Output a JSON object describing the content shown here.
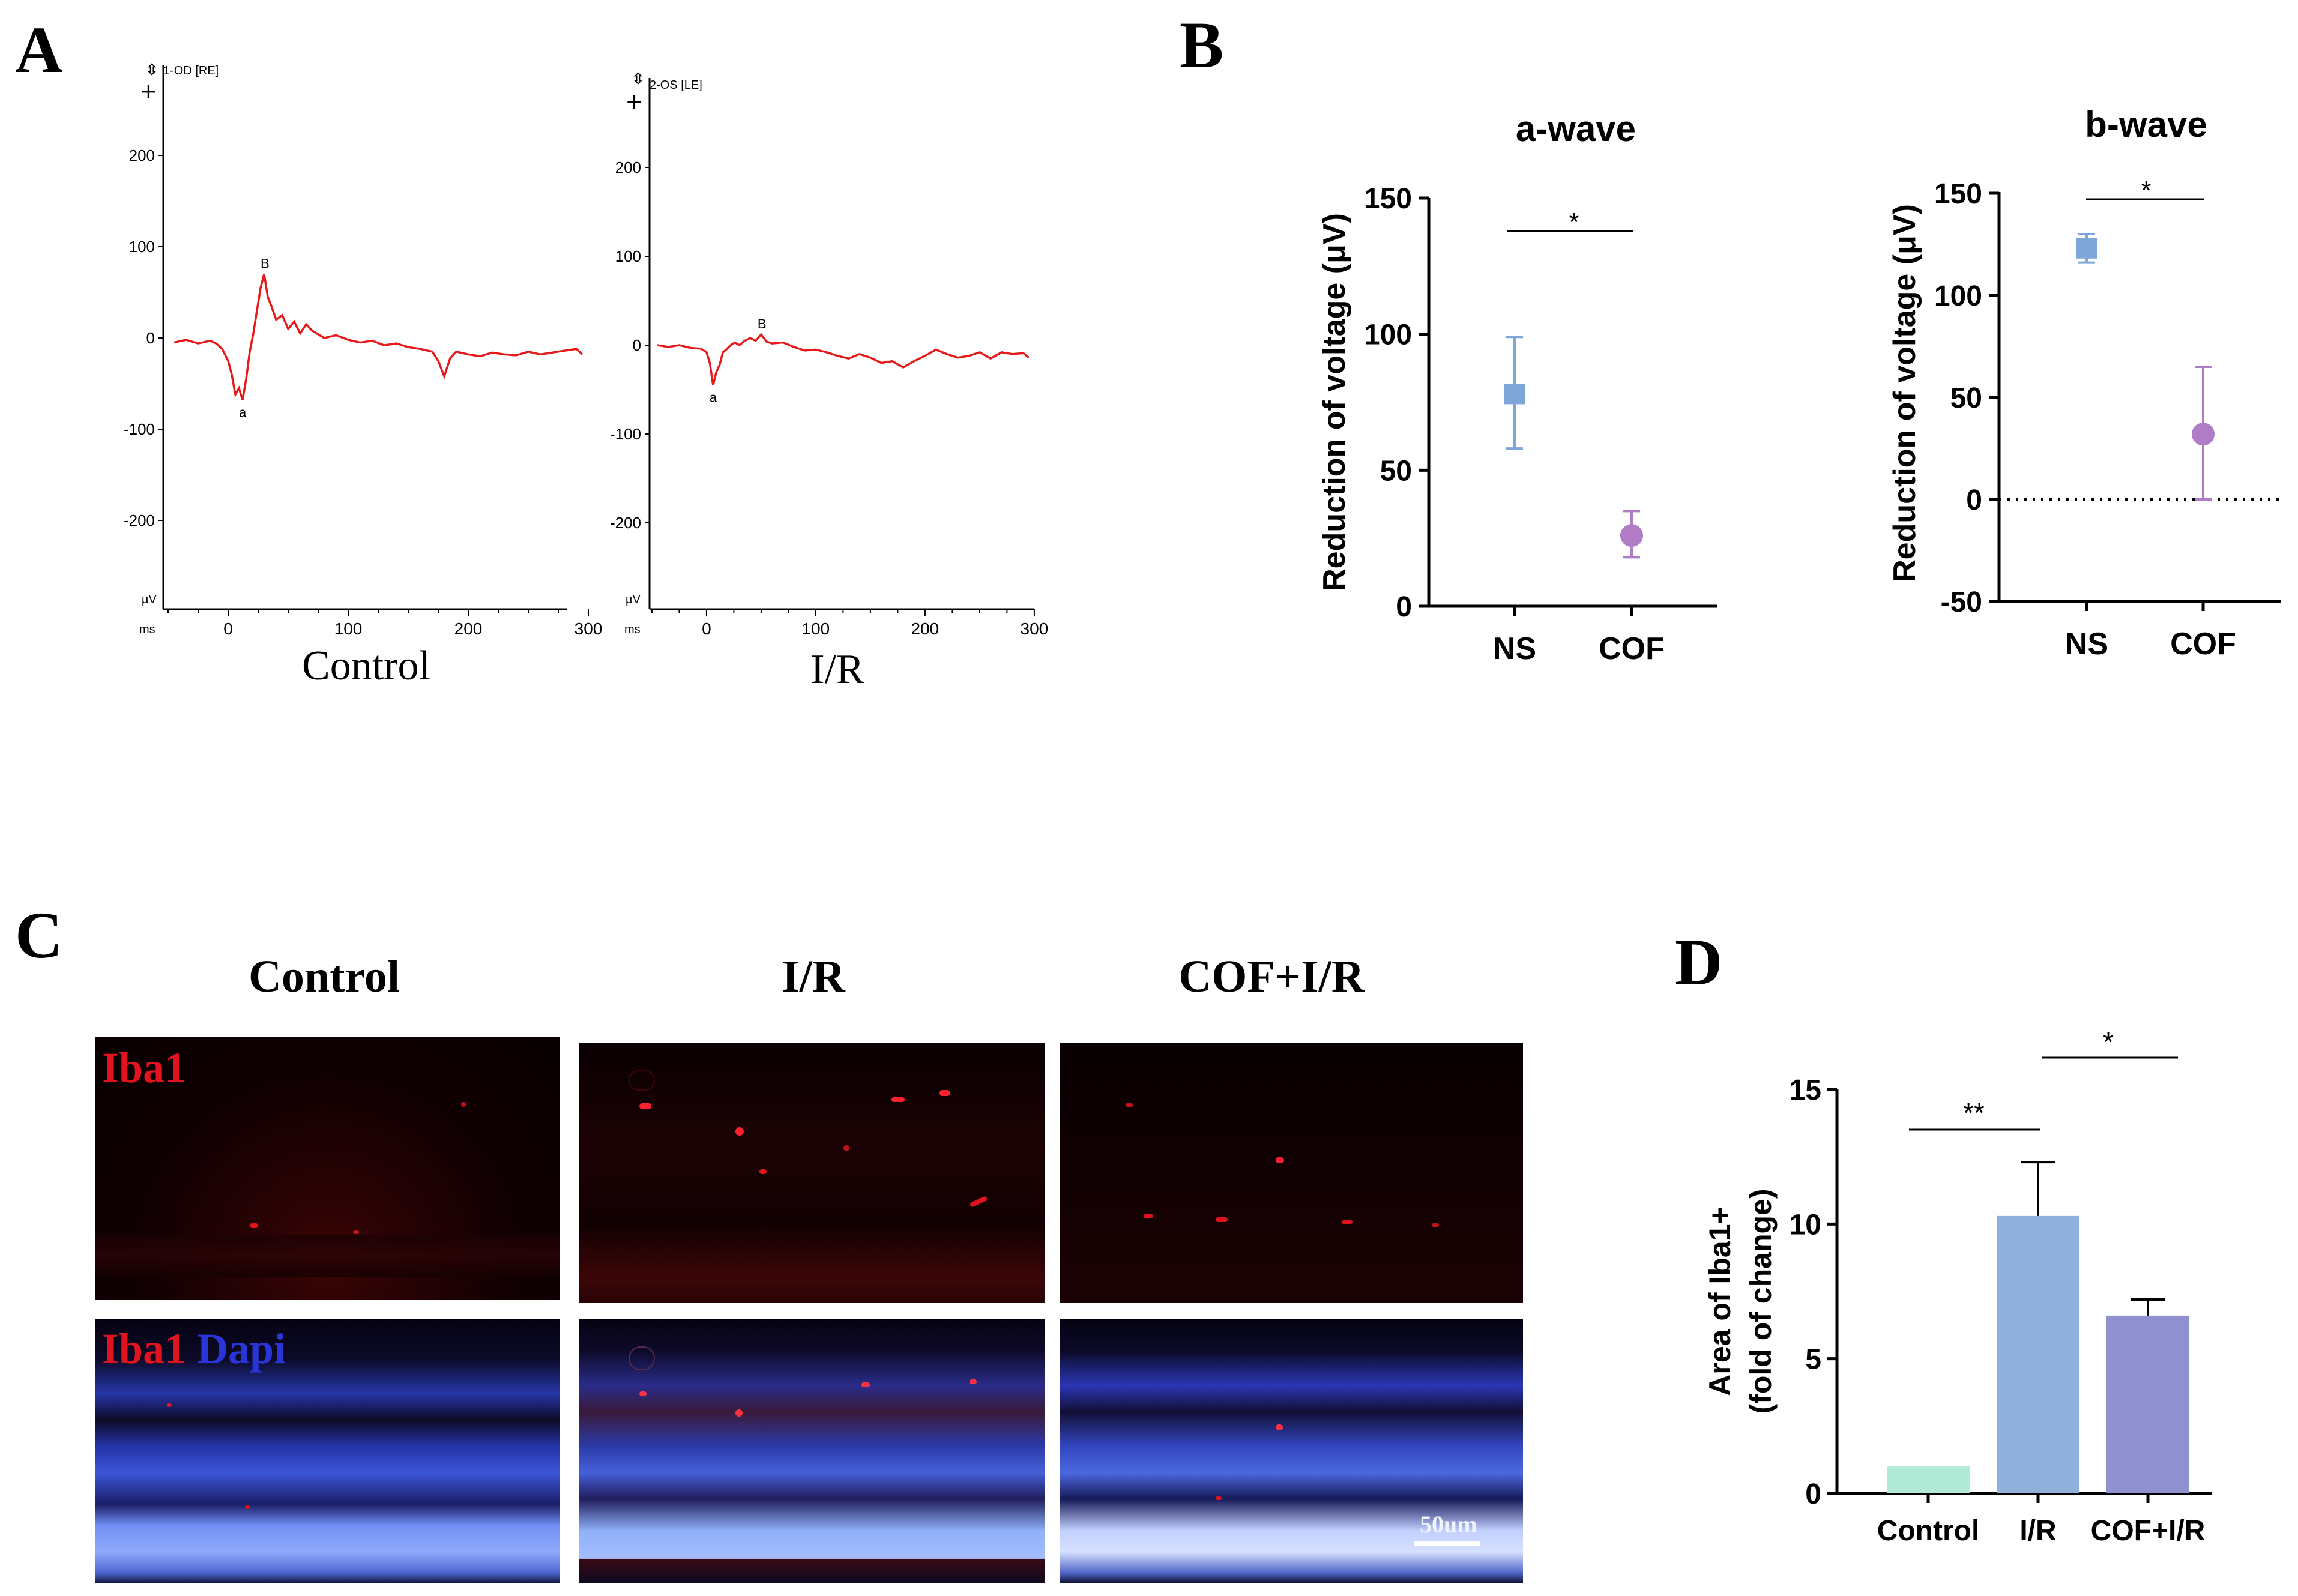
{
  "panel_labels": {
    "a": "A",
    "b": "B",
    "c": "C",
    "d": "D"
  },
  "erg": {
    "control": {
      "channel": "1-OD [RE]",
      "caption": "Control",
      "y_ticks": [
        "200",
        "100",
        "0",
        "-100",
        "-200"
      ],
      "y_unit": "µV",
      "x_unit": "ms",
      "x_ticks": [
        "0",
        "100",
        "200",
        "300"
      ],
      "marker_a": "a",
      "marker_b": "B"
    },
    "ir": {
      "channel": "2-OS [LE]",
      "caption": "I/R",
      "y_ticks": [
        "200",
        "100",
        "0",
        "-100",
        "-200"
      ],
      "y_unit": "µV",
      "x_unit": "ms",
      "x_ticks": [
        "0",
        "100",
        "200",
        "300"
      ],
      "marker_a": "a",
      "marker_b": "B"
    }
  },
  "chart_data": [
    {
      "id": "control-erg",
      "type": "line",
      "title": "Control",
      "xlabel": "ms",
      "ylabel": "µV",
      "xlim": [
        -50,
        300
      ],
      "ylim": [
        -300,
        300
      ],
      "series": [
        {
          "name": "1-OD [RE]",
          "color": "#e8191a",
          "x": [
            -45,
            -35,
            -25,
            -15,
            -10,
            -5,
            0,
            3,
            6,
            9,
            12,
            15,
            18,
            21,
            24,
            27,
            30,
            33,
            36,
            40,
            45,
            50,
            55,
            60,
            65,
            70,
            80,
            90,
            100,
            110,
            120,
            130,
            140,
            150,
            160,
            170,
            175,
            180,
            185,
            190,
            200,
            210,
            220,
            230,
            240,
            250,
            260,
            270,
            280,
            290,
            295
          ],
          "y": [
            -5,
            -2,
            -6,
            -3,
            -6,
            -12,
            -25,
            -40,
            -62,
            -55,
            -68,
            -45,
            -15,
            5,
            30,
            55,
            70,
            45,
            35,
            20,
            25,
            10,
            18,
            5,
            15,
            8,
            0,
            3,
            -2,
            -5,
            -3,
            -8,
            -6,
            -10,
            -12,
            -15,
            -25,
            -42,
            -22,
            -15,
            -18,
            -20,
            -16,
            -18,
            -19,
            -15,
            -18,
            -16,
            -14,
            -12,
            -18
          ]
        }
      ]
    },
    {
      "id": "ir-erg",
      "type": "line",
      "title": "I/R",
      "xlabel": "ms",
      "ylabel": "µV",
      "xlim": [
        -50,
        300
      ],
      "ylim": [
        -300,
        300
      ],
      "series": [
        {
          "name": "2-OS [LE]",
          "color": "#e8191a",
          "x": [
            -45,
            -35,
            -25,
            -15,
            -5,
            0,
            3,
            6,
            9,
            12,
            15,
            18,
            22,
            26,
            30,
            35,
            40,
            45,
            50,
            55,
            60,
            70,
            80,
            90,
            100,
            110,
            120,
            130,
            140,
            150,
            160,
            170,
            180,
            190,
            200,
            210,
            220,
            230,
            240,
            250,
            260,
            270,
            280,
            290,
            295
          ],
          "y": [
            0,
            -2,
            0,
            -3,
            -4,
            -8,
            -20,
            -45,
            -30,
            -22,
            -8,
            -5,
            0,
            3,
            0,
            5,
            8,
            5,
            12,
            4,
            2,
            3,
            -2,
            -6,
            -5,
            -8,
            -12,
            -15,
            -10,
            -14,
            -20,
            -18,
            -25,
            -18,
            -12,
            -5,
            -10,
            -14,
            -12,
            -8,
            -15,
            -8,
            -10,
            -9,
            -14
          ]
        }
      ]
    },
    {
      "id": "a-wave",
      "type": "scatter",
      "title": "a-wave",
      "ylabel": "Reduction of voltage (μV)",
      "categories": [
        "NS",
        "COF"
      ],
      "values": [
        78,
        26
      ],
      "error_low": [
        58,
        18
      ],
      "error_high": [
        99,
        35
      ],
      "ylim": [
        0,
        150
      ],
      "y_ticks": [
        0,
        50,
        100,
        150
      ],
      "significance": "*",
      "colors": [
        "#7ea6d8",
        "#b07cc6"
      ]
    },
    {
      "id": "b-wave",
      "type": "scatter",
      "title": "b-wave",
      "ylabel": "Reduction of voltage (μV)",
      "categories": [
        "NS",
        "COF"
      ],
      "values": [
        123,
        32
      ],
      "error_low": [
        116,
        0
      ],
      "error_high": [
        130,
        65
      ],
      "ylim": [
        -50,
        150
      ],
      "y_ticks": [
        -50,
        0,
        50,
        100,
        150
      ],
      "reference_line": 0,
      "significance": "*",
      "colors": [
        "#7ea6d8",
        "#b07cc6"
      ]
    },
    {
      "id": "iba1-area",
      "type": "bar",
      "ylabel_line1": "Area of Iba1+",
      "ylabel_line2": "(fold of change)",
      "categories": [
        "Control",
        "I/R",
        "COF+I/R"
      ],
      "values": [
        1.0,
        10.3,
        6.6
      ],
      "error_high": [
        1.0,
        12.3,
        7.2
      ],
      "ylim": [
        0,
        15
      ],
      "y_ticks": [
        0,
        5,
        10,
        15
      ],
      "significance": [
        {
          "pair": "Control vs I/R",
          "mark": "**"
        },
        {
          "pair": "I/R vs COF+I/R",
          "mark": "*"
        }
      ],
      "colors": [
        "#b2ead8",
        "#8eb0db",
        "#8f92cf"
      ]
    }
  ],
  "micrographs": {
    "columns": [
      "Control",
      "I/R",
      "COF+I/R"
    ],
    "row1_label": "Iba1",
    "row2_label_red": "Iba1",
    "row2_label_blue": "Dapi",
    "scale_bar": "50um",
    "colors": {
      "red": "#e0141e",
      "blue": "#2a35d8"
    }
  }
}
